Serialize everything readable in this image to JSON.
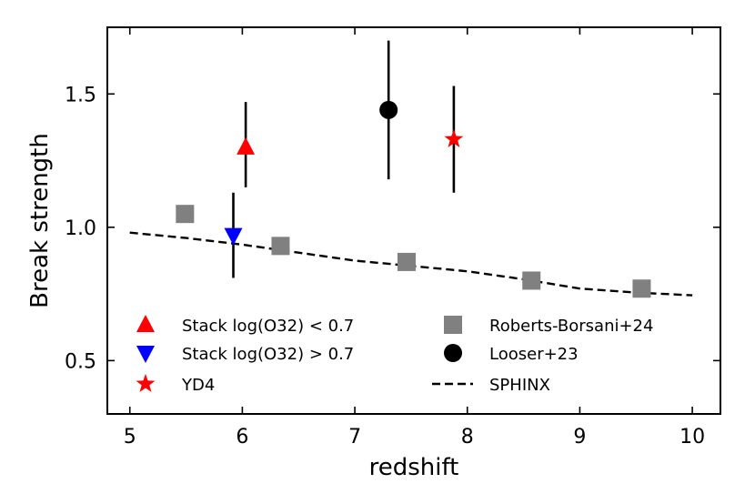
{
  "chart_data": {
    "type": "scatter",
    "xlabel": "redshift",
    "ylabel": "Break strength",
    "xlim": [
      4.8,
      10.25
    ],
    "ylim": [
      0.3,
      1.75
    ],
    "xticks": [
      "5",
      "6",
      "7",
      "8",
      "9",
      "10"
    ],
    "yticks": [
      "0.5",
      "1.0",
      "1.5"
    ],
    "grid": false,
    "legend_position": "lower-left",
    "series": [
      {
        "name": "Stack log(O32) < 0.7",
        "marker": "triangle-up",
        "color": "#ff0000",
        "points": [
          {
            "x": 6.03,
            "y": 1.3,
            "ylow": 1.15,
            "yhigh": 1.47
          }
        ]
      },
      {
        "name": "Stack log(O32) > 0.7",
        "marker": "triangle-down",
        "color": "#0000ff",
        "points": [
          {
            "x": 5.92,
            "y": 0.97,
            "ylow": 0.81,
            "yhigh": 1.13
          }
        ]
      },
      {
        "name": "YD4",
        "marker": "star",
        "color": "#ff0000",
        "points": [
          {
            "x": 7.88,
            "y": 1.33,
            "ylow": 1.13,
            "yhigh": 1.53
          }
        ]
      },
      {
        "name": "Roberts-Borsani+24",
        "marker": "square",
        "color": "#808080",
        "points": [
          {
            "x": 5.49,
            "y": 1.05
          },
          {
            "x": 6.34,
            "y": 0.93
          },
          {
            "x": 7.46,
            "y": 0.87
          },
          {
            "x": 8.57,
            "y": 0.8
          },
          {
            "x": 9.55,
            "y": 0.77
          }
        ]
      },
      {
        "name": "Looser+23",
        "marker": "circle",
        "color": "#000000",
        "points": [
          {
            "x": 7.3,
            "y": 1.44,
            "ylow": 1.18,
            "yhigh": 1.7
          }
        ]
      },
      {
        "name": "SPHINX",
        "marker": "dashed-line",
        "color": "#000000",
        "points": [
          {
            "x": 5.0,
            "y": 0.98
          },
          {
            "x": 5.5,
            "y": 0.96
          },
          {
            "x": 6.0,
            "y": 0.935
          },
          {
            "x": 6.5,
            "y": 0.905
          },
          {
            "x": 7.0,
            "y": 0.875
          },
          {
            "x": 7.5,
            "y": 0.855
          },
          {
            "x": 8.0,
            "y": 0.835
          },
          {
            "x": 8.5,
            "y": 0.805
          },
          {
            "x": 9.0,
            "y": 0.77
          },
          {
            "x": 9.5,
            "y": 0.755
          },
          {
            "x": 10.0,
            "y": 0.745
          }
        ]
      }
    ],
    "legend_columns": [
      [
        "Stack log(O32) < 0.7",
        "Stack log(O32) > 0.7",
        "YD4"
      ],
      [
        "Roberts-Borsani+24",
        "Looser+23",
        "SPHINX"
      ]
    ]
  }
}
